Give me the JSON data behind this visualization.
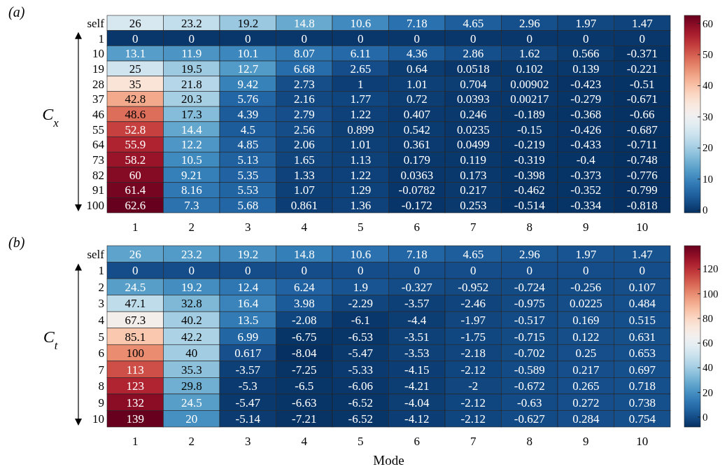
{
  "chart_data": [
    {
      "type": "heatmap",
      "title": "(a)",
      "ylabel": "C$_{x}$",
      "categories": [
        "1",
        "2",
        "3",
        "4",
        "5",
        "6",
        "7",
        "8",
        "9",
        "10"
      ],
      "y_categories": [
        "self",
        "1",
        "10",
        "19",
        "28",
        "37",
        "46",
        "55",
        "64",
        "73",
        "82",
        "91",
        "100"
      ],
      "clim": [
        -0.818,
        62.6
      ],
      "cticks": [
        0,
        10,
        20,
        30,
        40,
        50,
        60
      ],
      "cells": [
        [
          26,
          23.2,
          19.2,
          14.8,
          10.6,
          7.18,
          4.65,
          2.96,
          1.97,
          1.47
        ],
        [
          0,
          0,
          0,
          0,
          0,
          0,
          0,
          0,
          0,
          0
        ],
        [
          13.1,
          11.9,
          10.1,
          8.07,
          6.11,
          4.36,
          2.86,
          1.62,
          0.566,
          -0.371
        ],
        [
          25,
          19.5,
          12.7,
          6.68,
          2.65,
          0.64,
          0.0518,
          0.102,
          0.139,
          -0.221
        ],
        [
          35,
          21.8,
          9.42,
          2.73,
          1,
          1.01,
          0.704,
          0.00902,
          -0.423,
          -0.51
        ],
        [
          42.8,
          20.3,
          5.76,
          2.16,
          1.77,
          0.72,
          0.0393,
          0.00217,
          -0.279,
          -0.671
        ],
        [
          48.6,
          17.3,
          4.39,
          2.79,
          1.22,
          0.407,
          0.246,
          -0.189,
          -0.368,
          -0.66
        ],
        [
          52.8,
          14.4,
          4.5,
          2.56,
          0.899,
          0.542,
          0.0235,
          -0.15,
          -0.426,
          -0.687
        ],
        [
          55.9,
          12.2,
          4.85,
          2.06,
          1.01,
          0.361,
          0.0499,
          -0.219,
          -0.433,
          -0.711
        ],
        [
          58.2,
          10.5,
          5.13,
          1.65,
          1.13,
          0.179,
          0.119,
          -0.319,
          -0.4,
          -0.748
        ],
        [
          60,
          9.21,
          5.35,
          1.33,
          1.22,
          0.0363,
          0.173,
          -0.398,
          -0.373,
          -0.776
        ],
        [
          61.4,
          8.16,
          5.53,
          1.07,
          1.29,
          -0.0782,
          0.217,
          -0.462,
          -0.352,
          -0.799
        ],
        [
          62.6,
          7.3,
          5.68,
          0.861,
          1.36,
          -0.172,
          0.253,
          -0.514,
          -0.334,
          -0.818
        ]
      ],
      "data_labels": true
    },
    {
      "type": "heatmap",
      "title": "(b)",
      "ylabel": "C$_{t}$",
      "xlabel": "Mode",
      "categories": [
        "1",
        "2",
        "3",
        "4",
        "5",
        "6",
        "7",
        "8",
        "9",
        "10"
      ],
      "y_categories": [
        "self",
        "1",
        "2",
        "3",
        "4",
        "5",
        "6",
        "7",
        "8",
        "9",
        "10"
      ],
      "clim": [
        -8.04,
        139
      ],
      "cticks": [
        0,
        20,
        40,
        60,
        80,
        100,
        120
      ],
      "cells": [
        [
          26,
          23.2,
          19.2,
          14.8,
          10.6,
          7.18,
          4.65,
          2.96,
          1.97,
          1.47
        ],
        [
          0,
          0,
          0,
          0,
          0,
          0,
          0,
          0,
          0,
          0
        ],
        [
          24.5,
          19.2,
          12.4,
          6.24,
          1.9,
          -0.327,
          -0.952,
          -0.724,
          -0.256,
          0.107
        ],
        [
          47.1,
          32.8,
          16.4,
          3.98,
          -2.29,
          -3.57,
          -2.46,
          -0.975,
          0.0225,
          0.484
        ],
        [
          67.3,
          40.2,
          13.5,
          -2.08,
          -6.1,
          -4.4,
          -1.97,
          -0.517,
          0.169,
          0.515
        ],
        [
          85.1,
          42.2,
          6.99,
          -6.75,
          -6.53,
          -3.51,
          -1.75,
          -0.715,
          0.122,
          0.631
        ],
        [
          100,
          40,
          0.617,
          -8.04,
          -5.47,
          -3.53,
          -2.18,
          -0.702,
          0.25,
          0.653
        ],
        [
          113,
          35.3,
          -3.57,
          -7.25,
          -5.33,
          -4.15,
          -2.12,
          -0.589,
          0.217,
          0.697
        ],
        [
          123,
          29.8,
          -5.3,
          -6.5,
          -6.06,
          -4.21,
          -2,
          -0.672,
          0.265,
          0.718
        ],
        [
          132,
          24.5,
          -5.47,
          -6.63,
          -6.52,
          -4.04,
          -2.12,
          -0.63,
          0.272,
          0.738
        ],
        [
          139,
          20,
          -5.14,
          -7.21,
          -6.52,
          -4.12,
          -2.12,
          -0.627,
          0.284,
          0.754
        ]
      ],
      "data_labels": true
    }
  ]
}
